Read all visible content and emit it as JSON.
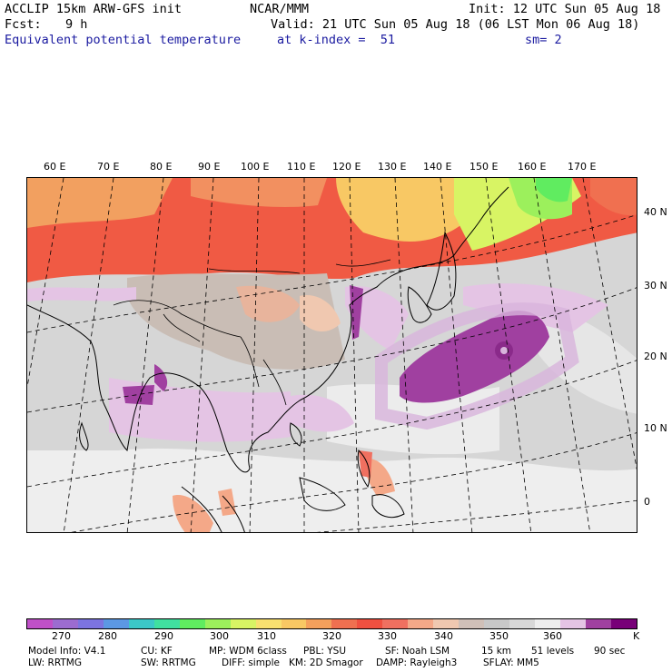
{
  "header": {
    "model": "ACCLIP 15km ARW-GFS init",
    "org": "NCAR/MMM",
    "init": "Init: 12 UTC Sun 05 Aug 18",
    "fcst_label": "Fcst:",
    "fcst_value": "9 h",
    "valid": "Valid: 21 UTC Sun 05 Aug 18 (06 LST Mon 06 Aug 18)",
    "field": "Equivalent potential temperature",
    "level": "at k-index =  51",
    "smoothing": "sm= 2"
  },
  "map": {
    "longitude_labels": [
      "60 E",
      "70 E",
      "80 E",
      "90 E",
      "100 E",
      "110 E",
      "120 E",
      "130 E",
      "140 E",
      "150 E",
      "160 E",
      "170 E"
    ],
    "latitude_labels": [
      "40 N",
      "30 N",
      "20 N",
      "10 N",
      "0"
    ]
  },
  "colorbar": {
    "colors": [
      "#c050c8",
      "#9c6cd0",
      "#7c74e0",
      "#5c98e4",
      "#3cc8c8",
      "#40e0a0",
      "#60ec60",
      "#9cf05c",
      "#d8f464",
      "#f8e070",
      "#f8c864",
      "#f4a05c",
      "#f07050",
      "#f05040",
      "#f07060",
      "#f4a888",
      "#f0c8b0",
      "#d0c0b8",
      "#c8c8c8",
      "#d8d8d8",
      "#eeeeee",
      "#e4c4e4",
      "#a040a0",
      "#780078"
    ],
    "ticks": [
      "270",
      "280",
      "290",
      "300",
      "310",
      "320",
      "330",
      "340",
      "350",
      "360"
    ],
    "unit": "K"
  },
  "footer": {
    "line1": [
      "Model Info: V4.1",
      "CU: KF",
      "MP: WDM 6class",
      "PBL: YSU",
      "SF: Noah LSM",
      "15 km",
      "51 levels",
      "90 sec"
    ],
    "line2": [
      "LW: RRTMG",
      "SW: RRTMG",
      "DIFF: simple",
      "KM: 2D Smagor",
      "DAMP: Rayleigh3",
      "SFLAY: MM5"
    ]
  }
}
